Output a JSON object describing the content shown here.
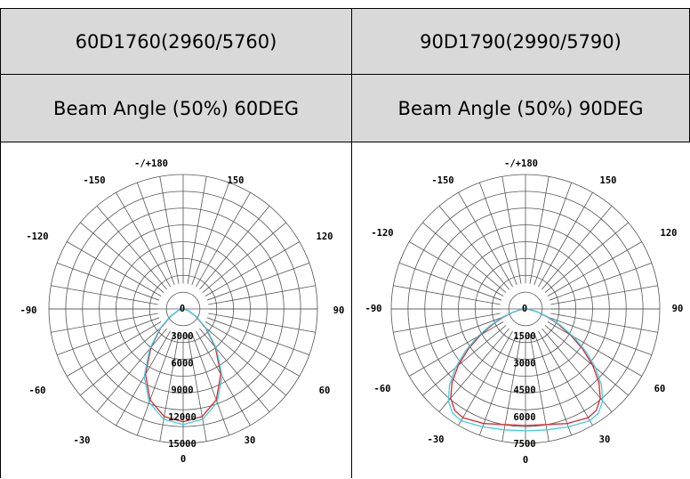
{
  "table": {
    "models": [
      "60D1760(2960/5760)",
      "90D1790(2990/5790)"
    ],
    "beam_angles": [
      "Beam Angle (50%) 60DEG",
      "Beam Angle (50%) 90DEG"
    ]
  },
  "chart_data": [
    {
      "type": "polar",
      "title": "",
      "angle_labels": [
        "-/+180",
        "150",
        "120",
        "90",
        "60",
        "30",
        "0",
        "-30",
        "-60",
        "-90",
        "-120",
        "-150"
      ],
      "radial_ticks": [
        0,
        3000,
        6000,
        9000,
        12000,
        15000
      ],
      "radial_tick_labels": [
        "0",
        "3000",
        "6000",
        "9000",
        "12000",
        "15000"
      ],
      "rmax": 15000,
      "series": [
        {
          "color": "#e8202a",
          "points": [
            [
              0,
              12600
            ],
            [
              10,
              12200
            ],
            [
              20,
              10800
            ],
            [
              30,
              8400
            ],
            [
              40,
              5600
            ],
            [
              50,
              3300
            ],
            [
              60,
              1600
            ],
            [
              70,
              650
            ],
            [
              80,
              150
            ],
            [
              90,
              0
            ]
          ]
        },
        {
          "color": "#35d2e6",
          "points": [
            [
              0,
              12900
            ],
            [
              10,
              12500
            ],
            [
              20,
              11100
            ],
            [
              30,
              8700
            ],
            [
              40,
              5800
            ],
            [
              50,
              3400
            ],
            [
              60,
              1700
            ],
            [
              70,
              700
            ],
            [
              80,
              180
            ],
            [
              90,
              0
            ]
          ]
        }
      ]
    },
    {
      "type": "polar",
      "title": "",
      "angle_labels": [
        "-/+180",
        "150",
        "120",
        "90",
        "60",
        "30",
        "0",
        "-30",
        "-60",
        "-90",
        "-120",
        "-150"
      ],
      "radial_ticks": [
        0,
        1500,
        3000,
        4500,
        6000,
        7500
      ],
      "radial_tick_labels": [
        "0",
        "1500",
        "3000",
        "4500",
        "6000",
        "7500"
      ],
      "rmax": 7500,
      "series": [
        {
          "color": "#e8202a",
          "points": [
            [
              0,
              6500
            ],
            [
              10,
              6550
            ],
            [
              20,
              6800
            ],
            [
              30,
              7000
            ],
            [
              35,
              6900
            ],
            [
              40,
              6500
            ],
            [
              45,
              5800
            ],
            [
              50,
              4900
            ],
            [
              55,
              3900
            ],
            [
              60,
              2900
            ],
            [
              65,
              2000
            ],
            [
              70,
              1300
            ],
            [
              75,
              750
            ],
            [
              80,
              350
            ],
            [
              85,
              100
            ],
            [
              90,
              0
            ]
          ]
        },
        {
          "color": "#35d2e6",
          "points": [
            [
              0,
              6800
            ],
            [
              10,
              6850
            ],
            [
              20,
              7000
            ],
            [
              30,
              7200
            ],
            [
              35,
              7100
            ],
            [
              40,
              6700
            ],
            [
              45,
              6000
            ],
            [
              50,
              5100
            ],
            [
              55,
              4100
            ],
            [
              60,
              3100
            ],
            [
              65,
              2150
            ],
            [
              70,
              1400
            ],
            [
              75,
              800
            ],
            [
              80,
              380
            ],
            [
              85,
              110
            ],
            [
              90,
              0
            ]
          ]
        }
      ]
    }
  ]
}
